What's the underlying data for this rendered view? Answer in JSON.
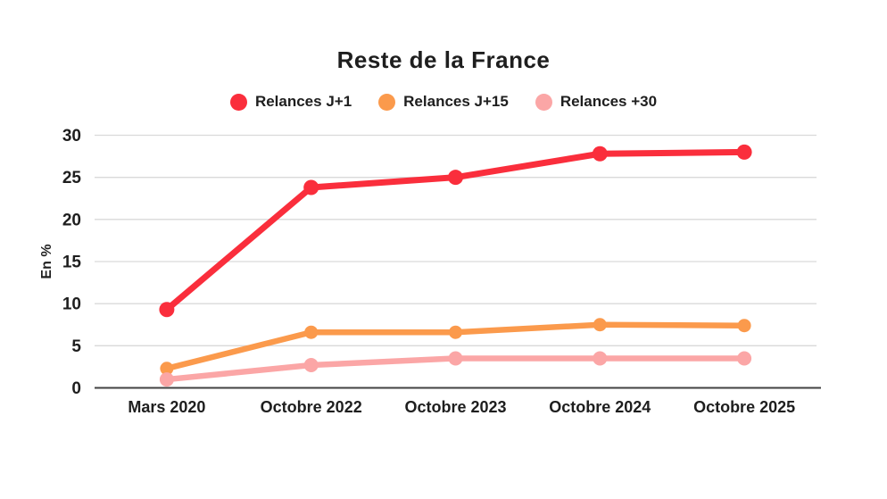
{
  "title": "Reste de la France",
  "chart_data": {
    "type": "line",
    "title": "Reste de la France",
    "xlabel": "",
    "ylabel": "En %",
    "categories": [
      "Mars 2020",
      "Octobre 2022",
      "Octobre 2023",
      "Octobre 2024",
      "Octobre 2025"
    ],
    "series": [
      {
        "name": "Relances J+1",
        "color": "#FA2E3C",
        "line_width": 7,
        "point_radius": 8.5,
        "values": [
          9.3,
          23.8,
          25.0,
          27.8,
          28.0
        ]
      },
      {
        "name": "Relances J+15",
        "color": "#FB9A4C",
        "line_width": 6.5,
        "point_radius": 7.5,
        "values": [
          2.3,
          6.6,
          6.6,
          7.5,
          7.4
        ]
      },
      {
        "name": "Relances +30",
        "color": "#FBA6A6",
        "line_width": 6.5,
        "point_radius": 8,
        "values": [
          1.0,
          2.7,
          3.5,
          3.5,
          3.5
        ]
      }
    ],
    "ylim": [
      0,
      30
    ],
    "yticks": [
      0,
      5,
      10,
      15,
      20,
      25,
      30
    ],
    "grid": true,
    "legend_position": "top"
  },
  "colors": {
    "text": "#1E1E1E",
    "gridline": "#D9D9D9",
    "axis_line": "#424242",
    "background": "#FFFFFF"
  }
}
